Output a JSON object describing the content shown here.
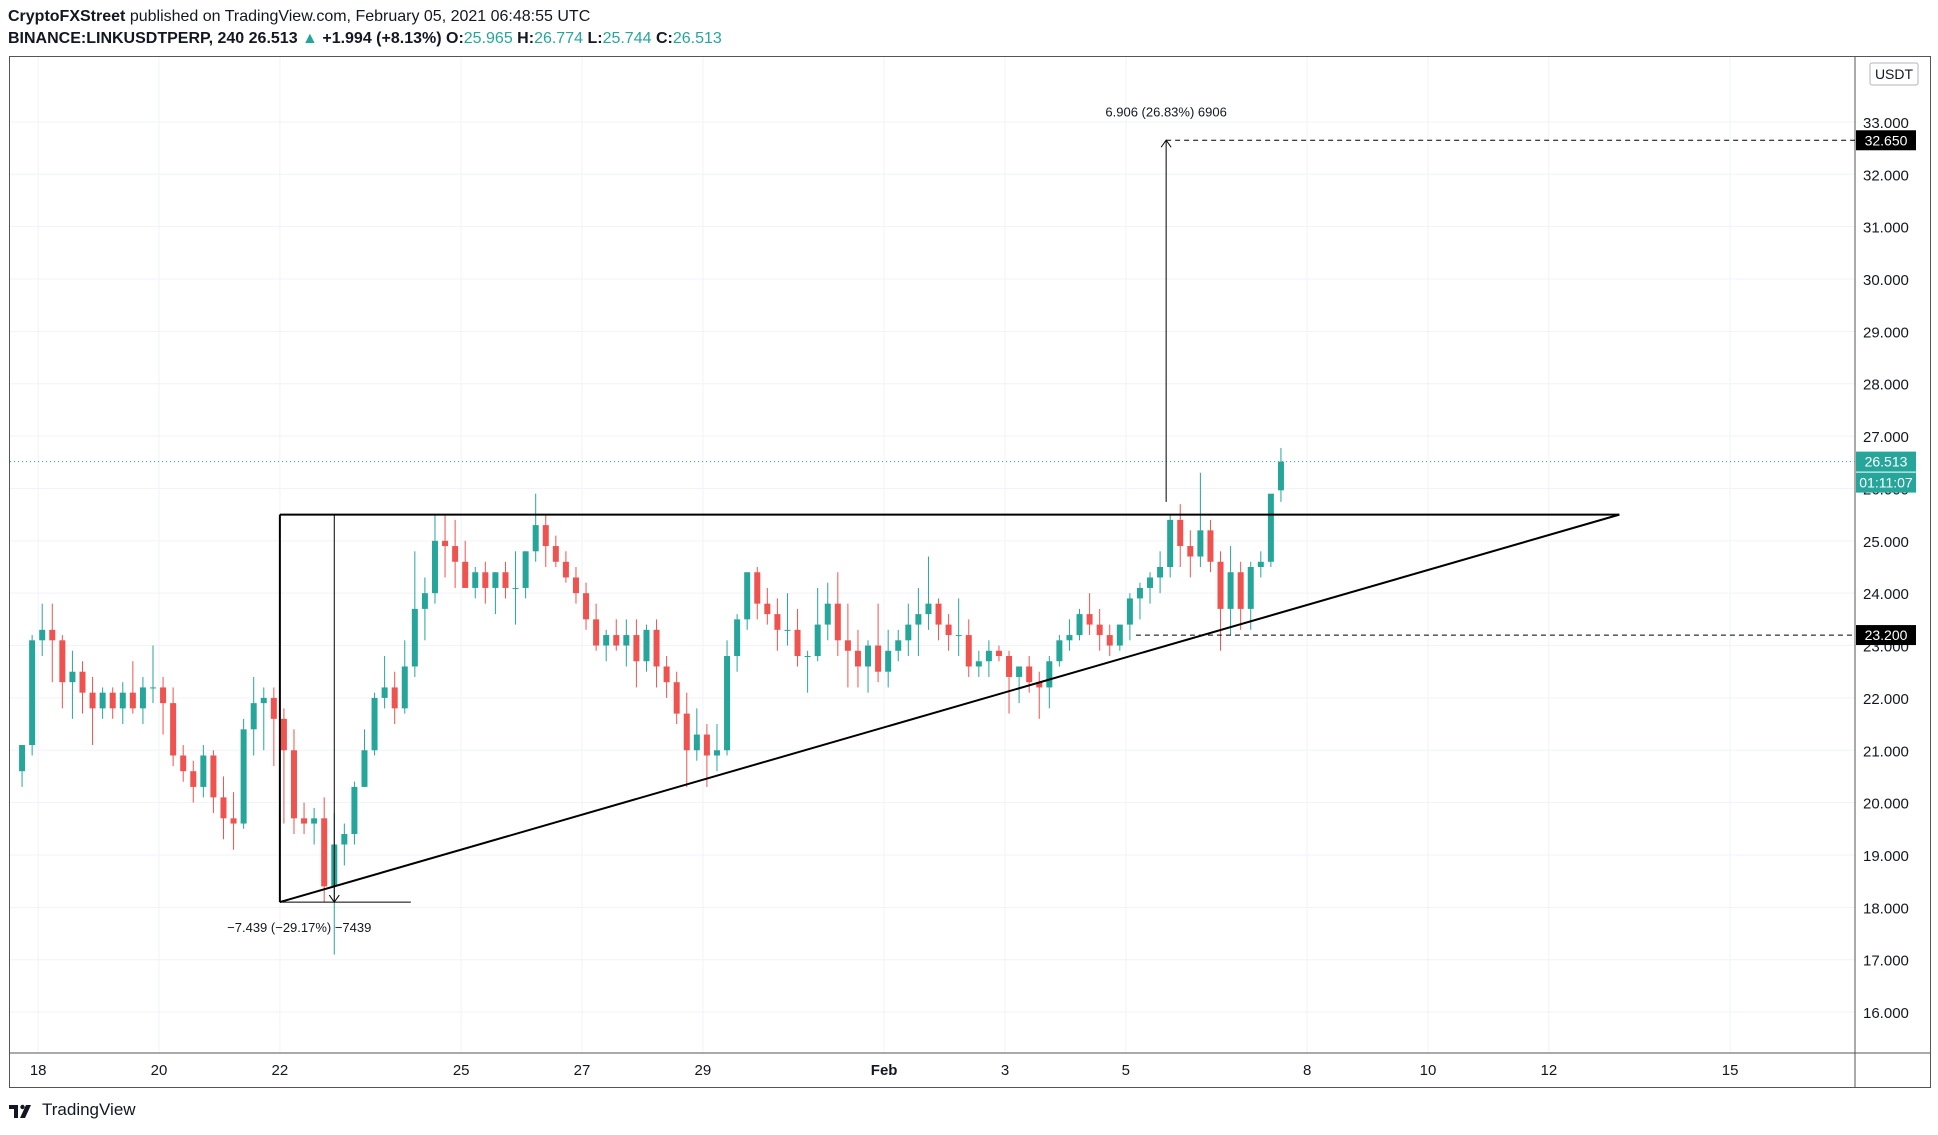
{
  "header": {
    "publisher": "CryptoFXStreet",
    "published_text": "published on TradingView.com, February 05, 2021 06:48:55 UTC",
    "symbol": "BINANCE:LINKUSDTPERP, 240",
    "last": "26.513",
    "change": "+1.994 (+8.13%)",
    "o_label": "O:",
    "o": "25.965",
    "h_label": "H:",
    "h": "26.774",
    "l_label": "L:",
    "l": "25.744",
    "c_label": "C:",
    "c": "26.513"
  },
  "footer": {
    "brand": "TradingView",
    "logo_icon": "tradingview-logo-icon"
  },
  "colors": {
    "up": "#26a69a",
    "down": "#ef5350",
    "grid": "#f0f3fa",
    "drawing": "#000000"
  },
  "chart_data": {
    "type": "candlestick",
    "symbol": "BINANCE:LINKUSDTPERP",
    "interval": "240",
    "currency_label": "USDT",
    "yticks": [
      16,
      17,
      18,
      19,
      20,
      21,
      22,
      23,
      24,
      25,
      26,
      27,
      28,
      29,
      30,
      31,
      32,
      33
    ],
    "ylim": [
      15.6,
      33.4
    ],
    "xticks": [
      {
        "label": "18",
        "index": 1.6
      },
      {
        "label": "20",
        "index": 13.6
      },
      {
        "label": "22",
        "index": 25.6
      },
      {
        "label": "25",
        "index": 43.6
      },
      {
        "label": "27",
        "index": 55.6
      },
      {
        "label": "29",
        "index": 67.6
      },
      {
        "label": "Feb",
        "index": 85.6
      },
      {
        "label": "3",
        "index": 97.6
      },
      {
        "label": "5",
        "index": 109.6
      },
      {
        "label": "8",
        "index": 127.6
      },
      {
        "label": "10",
        "index": 139.6
      },
      {
        "label": "12",
        "index": 151.6
      },
      {
        "label": "15",
        "index": 169.6
      }
    ],
    "xlim": [
      -0.9,
      182
    ],
    "ohlc": [
      [
        20.6,
        21.1,
        20.3,
        21.1
      ],
      [
        21.1,
        23.2,
        20.9,
        23.1
      ],
      [
        23.1,
        23.8,
        22.8,
        23.3
      ],
      [
        23.3,
        23.8,
        22.3,
        23.1
      ],
      [
        23.1,
        23.2,
        21.8,
        22.3
      ],
      [
        22.3,
        22.9,
        21.6,
        22.5
      ],
      [
        22.5,
        22.7,
        21.7,
        22.1
      ],
      [
        22.1,
        22.4,
        21.1,
        21.8
      ],
      [
        21.8,
        22.2,
        21.6,
        22.1
      ],
      [
        22.1,
        22.2,
        21.6,
        21.8
      ],
      [
        21.8,
        22.3,
        21.5,
        22.1
      ],
      [
        22.1,
        22.7,
        21.7,
        21.8
      ],
      [
        21.8,
        22.4,
        21.5,
        22.2
      ],
      [
        22.2,
        23.0,
        21.9,
        22.2
      ],
      [
        22.2,
        22.4,
        21.3,
        21.9
      ],
      [
        21.9,
        22.2,
        20.7,
        20.9
      ],
      [
        20.9,
        21.1,
        20.4,
        20.6
      ],
      [
        20.6,
        20.8,
        20.0,
        20.3
      ],
      [
        20.3,
        21.1,
        20.1,
        20.9
      ],
      [
        20.9,
        21.0,
        19.8,
        20.1
      ],
      [
        20.1,
        20.5,
        19.3,
        19.7
      ],
      [
        19.7,
        20.2,
        19.1,
        19.6
      ],
      [
        19.6,
        21.6,
        19.5,
        21.4
      ],
      [
        21.4,
        22.4,
        20.9,
        21.9
      ],
      [
        21.9,
        22.2,
        21.0,
        22.0
      ],
      [
        22.0,
        22.2,
        20.7,
        21.6
      ],
      [
        21.6,
        21.8,
        19.6,
        21.0
      ],
      [
        21.0,
        21.4,
        19.4,
        19.7
      ],
      [
        19.7,
        20.0,
        19.4,
        19.6
      ],
      [
        19.6,
        19.9,
        19.2,
        19.7
      ],
      [
        19.7,
        20.1,
        18.1,
        18.4
      ],
      [
        18.4,
        19.8,
        17.1,
        19.2
      ],
      [
        19.2,
        19.6,
        18.8,
        19.4
      ],
      [
        19.4,
        20.4,
        19.2,
        20.3
      ],
      [
        20.3,
        21.4,
        20.3,
        21.0
      ],
      [
        21.0,
        22.1,
        20.9,
        22.0
      ],
      [
        22.0,
        22.8,
        21.8,
        22.2
      ],
      [
        22.2,
        22.5,
        21.5,
        21.8
      ],
      [
        21.8,
        23.1,
        21.7,
        22.6
      ],
      [
        22.6,
        24.8,
        22.4,
        23.7
      ],
      [
        23.7,
        24.3,
        23.1,
        24.0
      ],
      [
        24.0,
        25.5,
        23.8,
        25.0
      ],
      [
        25.0,
        25.5,
        24.3,
        24.9
      ],
      [
        24.9,
        25.4,
        24.1,
        24.6
      ],
      [
        24.6,
        25.0,
        24.1,
        24.1
      ],
      [
        24.1,
        24.5,
        23.9,
        24.4
      ],
      [
        24.4,
        24.6,
        23.8,
        24.1
      ],
      [
        24.1,
        24.4,
        23.6,
        24.4
      ],
      [
        24.4,
        24.6,
        23.9,
        24.1
      ],
      [
        24.1,
        24.8,
        23.4,
        24.1
      ],
      [
        24.1,
        24.8,
        23.9,
        24.8
      ],
      [
        24.8,
        25.9,
        24.6,
        25.3
      ],
      [
        25.3,
        25.5,
        24.5,
        24.9
      ],
      [
        24.9,
        25.1,
        24.5,
        24.6
      ],
      [
        24.6,
        24.8,
        24.2,
        24.3
      ],
      [
        24.3,
        24.5,
        23.8,
        24.0
      ],
      [
        24.0,
        24.2,
        23.3,
        23.5
      ],
      [
        23.5,
        23.8,
        22.9,
        23.0
      ],
      [
        23.0,
        23.3,
        22.7,
        23.2
      ],
      [
        23.2,
        23.5,
        22.9,
        23.0
      ],
      [
        23.0,
        23.5,
        22.6,
        23.2
      ],
      [
        23.2,
        23.5,
        22.2,
        22.7
      ],
      [
        22.7,
        23.4,
        22.5,
        23.3
      ],
      [
        23.3,
        23.5,
        22.2,
        22.6
      ],
      [
        22.6,
        22.8,
        22.0,
        22.3
      ],
      [
        22.3,
        22.5,
        21.5,
        21.7
      ],
      [
        21.7,
        22.1,
        20.3,
        21.0
      ],
      [
        21.0,
        21.8,
        20.8,
        21.3
      ],
      [
        21.3,
        21.5,
        20.3,
        20.9
      ],
      [
        20.9,
        21.5,
        20.6,
        21.0
      ],
      [
        21.0,
        23.1,
        20.9,
        22.8
      ],
      [
        22.8,
        23.6,
        22.5,
        23.5
      ],
      [
        23.5,
        24.4,
        23.3,
        24.4
      ],
      [
        24.4,
        24.5,
        23.5,
        23.8
      ],
      [
        23.8,
        24.1,
        23.4,
        23.6
      ],
      [
        23.6,
        23.9,
        22.9,
        23.3
      ],
      [
        23.3,
        24.0,
        23.0,
        23.3
      ],
      [
        23.3,
        23.7,
        22.6,
        22.8
      ],
      [
        22.8,
        22.9,
        22.1,
        22.8
      ],
      [
        22.8,
        24.1,
        22.7,
        23.4
      ],
      [
        23.4,
        24.2,
        23.1,
        23.8
      ],
      [
        23.8,
        24.4,
        22.8,
        23.1
      ],
      [
        23.1,
        23.8,
        22.2,
        22.9
      ],
      [
        22.9,
        23.3,
        22.2,
        22.6
      ],
      [
        22.6,
        23.1,
        22.1,
        23.0
      ],
      [
        23.0,
        23.8,
        22.3,
        22.5
      ],
      [
        22.5,
        23.3,
        22.2,
        22.9
      ],
      [
        22.9,
        23.3,
        22.7,
        23.1
      ],
      [
        23.1,
        23.8,
        22.8,
        23.4
      ],
      [
        23.4,
        24.1,
        22.8,
        23.6
      ],
      [
        23.6,
        24.7,
        23.3,
        23.8
      ],
      [
        23.8,
        23.9,
        23.1,
        23.4
      ],
      [
        23.4,
        23.6,
        22.9,
        23.2
      ],
      [
        23.2,
        23.9,
        22.8,
        23.2
      ],
      [
        23.2,
        23.5,
        22.4,
        22.6
      ],
      [
        22.6,
        22.9,
        22.4,
        22.7
      ],
      [
        22.7,
        23.1,
        22.4,
        22.9
      ],
      [
        22.9,
        23.0,
        22.7,
        22.8
      ],
      [
        22.8,
        22.9,
        21.7,
        22.4
      ],
      [
        22.4,
        22.6,
        21.9,
        22.6
      ],
      [
        22.6,
        22.8,
        22.1,
        22.3
      ],
      [
        22.3,
        22.5,
        21.6,
        22.2
      ],
      [
        22.2,
        22.8,
        21.8,
        22.7
      ],
      [
        22.7,
        23.2,
        22.6,
        23.1
      ],
      [
        23.1,
        23.5,
        22.9,
        23.2
      ],
      [
        23.2,
        23.7,
        23.1,
        23.6
      ],
      [
        23.6,
        24.0,
        23.2,
        23.4
      ],
      [
        23.4,
        23.7,
        22.9,
        23.2
      ],
      [
        23.2,
        23.4,
        22.8,
        23.0
      ],
      [
        23.0,
        23.4,
        22.9,
        23.4
      ],
      [
        23.4,
        24.0,
        23.1,
        23.9
      ],
      [
        23.9,
        24.2,
        23.5,
        24.1
      ],
      [
        24.1,
        24.4,
        23.8,
        24.3
      ],
      [
        24.3,
        24.8,
        24.0,
        24.5
      ],
      [
        24.5,
        25.5,
        24.3,
        25.4
      ],
      [
        25.4,
        25.7,
        24.5,
        24.9
      ],
      [
        24.9,
        25.2,
        24.3,
        24.7
      ],
      [
        24.7,
        26.3,
        24.5,
        25.2
      ],
      [
        25.2,
        25.4,
        24.4,
        24.6
      ],
      [
        24.6,
        24.8,
        22.9,
        23.7
      ],
      [
        23.7,
        24.9,
        23.2,
        24.4
      ],
      [
        24.4,
        24.6,
        23.3,
        23.7
      ],
      [
        23.7,
        24.6,
        23.3,
        24.5
      ],
      [
        24.5,
        24.8,
        24.3,
        24.6
      ],
      [
        24.6,
        25.8,
        24.5,
        25.9
      ],
      [
        25.965,
        26.774,
        25.744,
        26.513
      ]
    ],
    "current_price_label": "26.513",
    "countdown_label": "01:11:07",
    "annotations": {
      "target_label": "32.650",
      "target_value": 32.65,
      "support_label": "23.200",
      "support_value": 23.2,
      "measure_up_text": "6.906 (26.83%) 6906",
      "measure_down_text": "−7.439 (−29.17%) −7439",
      "resistance_value": 25.5,
      "triangle_base_low": 18.1,
      "triangle_start_index": 25.6,
      "triangle_apex_index": 158.6,
      "rising_line": [
        [
          25.6,
          18.1
        ],
        [
          158.6,
          25.5
        ]
      ],
      "resistance_line": [
        [
          25.6,
          25.5
        ],
        [
          158.6,
          25.5
        ]
      ],
      "measure_down": {
        "x": 31.0,
        "from": 25.5,
        "to": 18.1
      },
      "measure_up": {
        "x": 113.6,
        "from": 25.744,
        "to": 32.65
      },
      "support_line_from_index": 110.6,
      "target_line_from_index": 113.6
    }
  }
}
